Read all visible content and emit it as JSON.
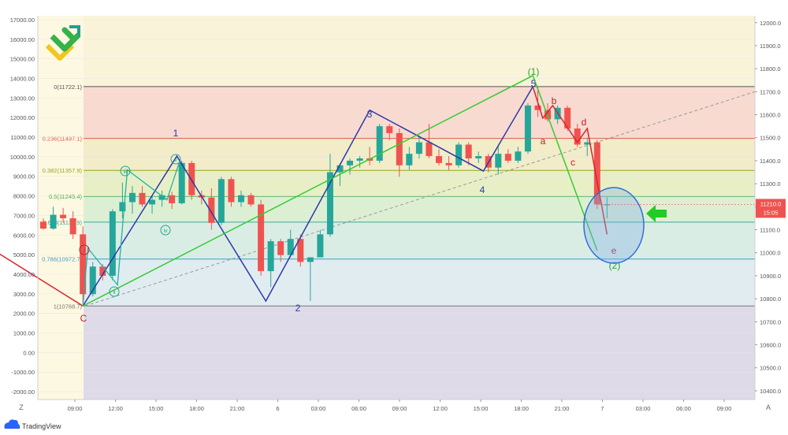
{
  "chart_data": {
    "type": "candlestick",
    "left_axis": {
      "ticks": [
        "17000.00",
        "16000.00",
        "15000.00",
        "14000.00",
        "13000.00",
        "12000.00",
        "11000.00",
        "10000.00",
        "9000.00",
        "8000.00",
        "7000.00",
        "6000.00",
        "5000.00",
        "4000.00",
        "3000.00",
        "2000.00",
        "1000.00",
        "0.00",
        "-1000.00",
        "-2000.00"
      ],
      "range": [
        -2400,
        17200
      ]
    },
    "right_axis": {
      "ticks": [
        "12000.0",
        "11900.0",
        "11800.0",
        "11700.0",
        "11600.0",
        "11500.0",
        "11400.0",
        "11300.0",
        "11200.0",
        "11100.0",
        "11000.0",
        "10900.0",
        "10800.0",
        "10700.0",
        "10600.0",
        "10500.0",
        "10400.0"
      ],
      "range": [
        10362,
        12030
      ]
    },
    "time_axis": {
      "ticks": [
        "09:00",
        "12:00",
        "15:00",
        "18:00",
        "21:00",
        "6",
        "03:00",
        "06:00",
        "09:00",
        "12:00",
        "15:00",
        "18:00",
        "21:00",
        "7",
        "03:00",
        "06:00",
        "09:00"
      ]
    },
    "price_label": {
      "price": "11210.0",
      "countdown": "15:05"
    },
    "fib_levels": [
      {
        "label": "0(11722.1)",
        "price": 11722.1,
        "color": "#555555"
      },
      {
        "label": "0.236(11497.1)",
        "price": 11497.1,
        "color": "#e0584f"
      },
      {
        "label": "0.382(11357.9)",
        "price": 11357.9,
        "color": "#8fa81e"
      },
      {
        "label": "0.5(11245.4)",
        "price": 11245.4,
        "color": "#3aa84a"
      },
      {
        "label": "0.618(11132.9)",
        "price": 11132.9,
        "color": "#3aa89b"
      },
      {
        "label": "0.786(10972.7)",
        "price": 10972.7,
        "color": "#3a9fc8"
      },
      {
        "label": "1(10768.7)",
        "price": 10768.7,
        "color": "#777777"
      }
    ],
    "candles": [
      [
        0,
        11135,
        11150,
        11100,
        11105
      ],
      [
        1,
        11105,
        11200,
        11100,
        11165
      ],
      [
        2,
        11165,
        11195,
        11130,
        11150
      ],
      [
        3,
        11150,
        11180,
        11060,
        11080
      ],
      [
        4,
        11080,
        11115,
        10780,
        10820
      ],
      [
        5,
        10820,
        10960,
        10810,
        10940
      ],
      [
        6,
        10940,
        10950,
        10880,
        10900
      ],
      [
        7,
        10900,
        11190,
        10880,
        11180
      ],
      [
        8,
        11180,
        11305,
        11150,
        11220
      ],
      [
        9,
        11220,
        11290,
        11170,
        11260
      ],
      [
        10,
        11260,
        11290,
        11200,
        11210
      ],
      [
        11,
        11210,
        11250,
        11170,
        11230
      ],
      [
        12,
        11230,
        11270,
        11200,
        11250
      ],
      [
        13,
        11250,
        11265,
        11190,
        11215
      ],
      [
        14,
        11215,
        11400,
        11210,
        11390
      ],
      [
        15,
        11390,
        11400,
        11230,
        11250
      ],
      [
        16,
        11250,
        11270,
        11210,
        11240
      ],
      [
        17,
        11240,
        11280,
        11100,
        11130
      ],
      [
        18,
        11130,
        11330,
        11120,
        11320
      ],
      [
        19,
        11320,
        11330,
        11200,
        11220
      ],
      [
        20,
        11220,
        11270,
        11200,
        11250
      ],
      [
        21,
        11250,
        11260,
        11200,
        11210
      ],
      [
        22,
        11210,
        11230,
        10900,
        10920
      ],
      [
        23,
        10920,
        11060,
        10850,
        11050
      ],
      [
        24,
        11050,
        11060,
        10960,
        10990
      ],
      [
        25,
        10990,
        11100,
        10980,
        11060
      ],
      [
        26,
        11060,
        11080,
        10940,
        10960
      ],
      [
        27,
        10960,
        10980,
        10790,
        10980
      ],
      [
        28,
        10980,
        11100,
        10980,
        11080
      ],
      [
        29,
        11080,
        11430,
        11070,
        11350
      ],
      [
        30,
        11350,
        11390,
        11290,
        11380
      ],
      [
        31,
        11380,
        11410,
        11340,
        11400
      ],
      [
        32,
        11400,
        11420,
        11370,
        11410
      ],
      [
        33,
        11410,
        11460,
        11380,
        11400
      ],
      [
        34,
        11400,
        11560,
        11390,
        11550
      ],
      [
        35,
        11550,
        11560,
        11490,
        11520
      ],
      [
        36,
        11520,
        11540,
        11330,
        11380
      ],
      [
        37,
        11380,
        11460,
        11360,
        11430
      ],
      [
        38,
        11430,
        11510,
        11410,
        11480
      ],
      [
        39,
        11480,
        11560,
        11410,
        11420
      ],
      [
        40,
        11420,
        11450,
        11380,
        11390
      ],
      [
        41,
        11390,
        11420,
        11360,
        11380
      ],
      [
        42,
        11380,
        11480,
        11370,
        11470
      ],
      [
        43,
        11470,
        11480,
        11380,
        11410
      ],
      [
        44,
        11410,
        11440,
        11390,
        11420
      ],
      [
        45,
        11420,
        11430,
        11350,
        11370
      ],
      [
        46,
        11370,
        11460,
        11340,
        11430
      ],
      [
        47,
        11430,
        11450,
        11390,
        11400
      ],
      [
        48,
        11400,
        11460,
        11390,
        11440
      ],
      [
        49,
        11440,
        11650,
        11430,
        11640
      ],
      [
        50,
        11640,
        11722,
        11590,
        11620
      ],
      [
        51,
        11620,
        11650,
        11570,
        11580
      ],
      [
        52,
        11580,
        11640,
        11560,
        11630
      ],
      [
        53,
        11630,
        11640,
        11530,
        11540
      ],
      [
        54,
        11540,
        11560,
        11460,
        11470
      ],
      [
        55,
        11470,
        11500,
        11420,
        11480
      ],
      [
        56,
        11480,
        11490,
        11190,
        11210
      ],
      [
        57,
        11210,
        11240,
        11150,
        11210
      ]
    ],
    "wave_labels": [
      {
        "text": "(1)",
        "color": "#2aa02a"
      },
      {
        "text": "5",
        "color": "#2b3aa8"
      },
      {
        "text": "1",
        "color": "#2b3aa8"
      },
      {
        "text": "2",
        "color": "#2b3aa8"
      },
      {
        "text": "3",
        "color": "#2b3aa8"
      },
      {
        "text": "4",
        "color": "#2b3aa8"
      },
      {
        "text": "a",
        "color": "#c0202a"
      },
      {
        "text": "b",
        "color": "#c0202a"
      },
      {
        "text": "c",
        "color": "#c0202a"
      },
      {
        "text": "d",
        "color": "#c0202a"
      },
      {
        "text": "e",
        "color": "#c0202a"
      },
      {
        "text": "C",
        "color": "#c0202a"
      },
      {
        "text": "(2)",
        "color": "#2aa02a"
      }
    ],
    "circled_labels": [
      {
        "text": "i",
        "color": "#c0202a"
      },
      {
        "text": "ii",
        "color": "#1fa58f"
      },
      {
        "text": "iii",
        "color": "#1fa58f"
      },
      {
        "text": "iv",
        "color": "#1fa58f"
      },
      {
        "text": "v",
        "color": "#1fa58f"
      }
    ],
    "colors": {
      "up": "#26a69a",
      "down": "#ef5350",
      "blue_wave": "#2b3aa8",
      "green_wave": "#33cc33",
      "teal_wave": "#1fb5a0",
      "red_wave": "#d9232e",
      "arrow": "#22cc22",
      "ellipse": "#2d6fd6"
    }
  },
  "ui": {
    "tz_button": "Z",
    "auto_button": "A",
    "brand": "TradingView",
    "brand_icon": "cloud-logo-icon",
    "logo_icon": "broker-logo-icon"
  }
}
